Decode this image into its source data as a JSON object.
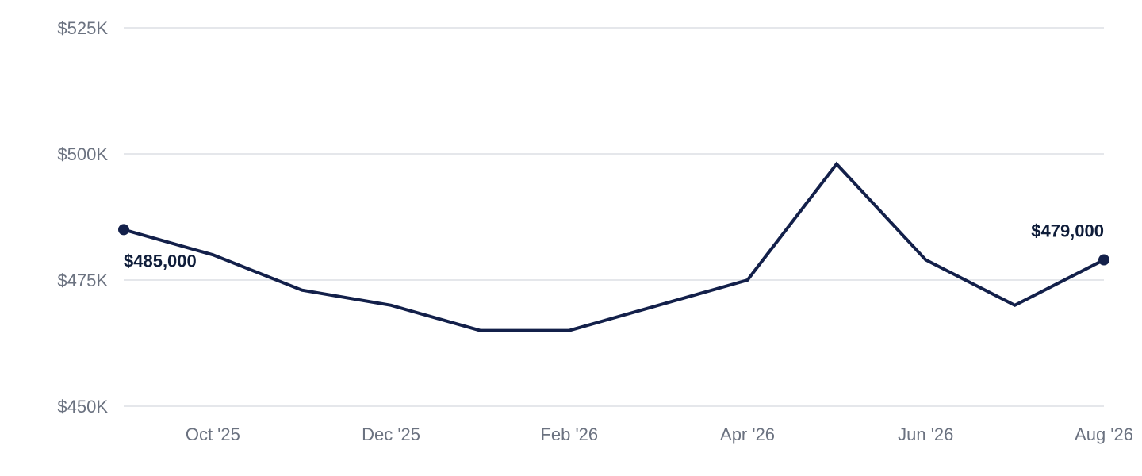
{
  "chart_data": {
    "type": "line",
    "title": "",
    "xlabel": "",
    "ylabel": "",
    "x": [
      "2025-09",
      "2025-10",
      "2025-11",
      "2025-12",
      "2026-01",
      "2026-02",
      "2026-03",
      "2026-04",
      "2026-05",
      "2026-06",
      "2026-07",
      "2026-08"
    ],
    "series": [
      {
        "values": [
          485000,
          480000,
          473000,
          470000,
          465000,
          465000,
          470000,
          475000,
          498000,
          479000,
          470000,
          479000
        ],
        "color": "#13204a"
      }
    ],
    "ylim": [
      450000,
      525000
    ],
    "y_ticks": [
      {
        "value": 450000,
        "label": "$450K"
      },
      {
        "value": 475000,
        "label": "$475K"
      },
      {
        "value": 500000,
        "label": "$500K"
      },
      {
        "value": 525000,
        "label": "$525K"
      }
    ],
    "x_ticks": [
      {
        "x": "2025-10",
        "label": "Oct '25"
      },
      {
        "x": "2025-12",
        "label": "Dec '25"
      },
      {
        "x": "2026-02",
        "label": "Feb '26"
      },
      {
        "x": "2026-04",
        "label": "Apr '26"
      },
      {
        "x": "2026-06",
        "label": "Jun '26"
      },
      {
        "x": "2026-08",
        "label": "Aug '26"
      }
    ],
    "annotations": [
      {
        "x": "2025-09",
        "label": "$485,000"
      },
      {
        "x": "2026-08",
        "label": "$479,000"
      }
    ],
    "grid": true,
    "legend": "none",
    "colors": {
      "gridline": "#e5e7eb",
      "tick_text": "#6b7280",
      "annotation_text": "#0f1d3a"
    }
  }
}
